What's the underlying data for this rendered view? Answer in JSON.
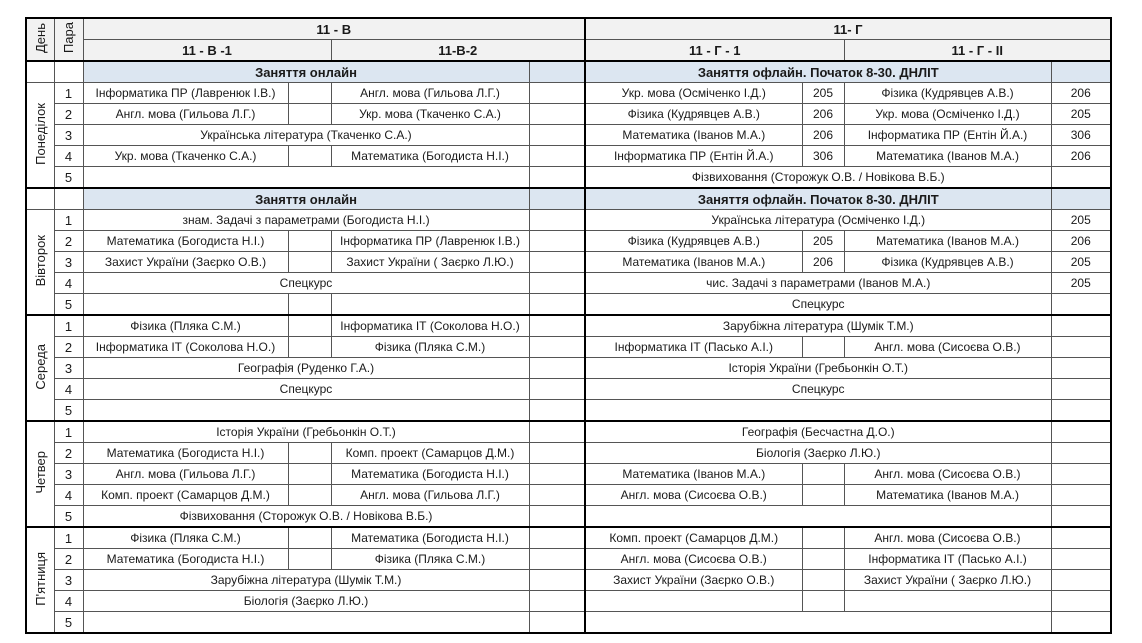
{
  "header": {
    "day_label": "День",
    "para_label": "Пара",
    "class_b": "11 - В",
    "class_g": "11- Г",
    "group_b1": "11 - В -1",
    "group_b2": "11-В-2",
    "group_g1": "11 - Г - 1",
    "group_g2": "11 - Г - II"
  },
  "colors": {
    "header_bg": "#f2f2f2",
    "banner_bg": "#dce6f1"
  },
  "days": [
    {
      "name": "Понеділок",
      "banner": {
        "b": "Заняття онлайн",
        "g": "Заняття офлайн. Початок 8-30. ДНЛІТ"
      },
      "rows": [
        {
          "num": "1",
          "b": [
            "Інформатика ПР (Лавренюк І.В.)",
            "",
            "Англ. мова (Гильова Л.Г.)",
            ""
          ],
          "g": [
            "Укр. мова (Осміченко І.Д.)",
            "205",
            "Фізика (Кудрявцев А.В.)",
            "206"
          ]
        },
        {
          "num": "2",
          "b": [
            "Англ. мова (Гильова Л.Г.)",
            "",
            "Укр. мова (Ткаченко С.А.)",
            ""
          ],
          "g": [
            "Фізика (Кудрявцев А.В.)",
            "206",
            "Укр. мова (Осміченко І.Д.)",
            "205"
          ]
        },
        {
          "num": "3",
          "b": [
            "Українська література (Ткаченко С.А.)",
            ""
          ],
          "g": [
            "Математика (Іванов М.А.)",
            "206",
            "Інформатика ПР (Ентін Й.А.)",
            "306"
          ]
        },
        {
          "num": "4",
          "b": [
            "Укр. мова (Ткаченко С.А.)",
            "",
            "Математика (Богодиста Н.І.)",
            ""
          ],
          "g": [
            "Інформатика ПР (Ентін Й.А.)",
            "306",
            "Математика (Іванов М.А.)",
            "206"
          ]
        },
        {
          "num": "5",
          "b": [
            "",
            ""
          ],
          "g": [
            "Фізвиховання (Сторожук О.В. / Новікова В.Б.)",
            ""
          ]
        }
      ]
    },
    {
      "name": "Вівторок",
      "banner": {
        "b": "Заняття онлайн",
        "g": "Заняття офлайн. Початок 8-30. ДНЛІТ"
      },
      "rows": [
        {
          "num": "1",
          "b": [
            "знам. Задачі з параметрами (Богодиста Н.І.)",
            ""
          ],
          "g": [
            "Українська література (Осміченко І.Д.)",
            "205"
          ]
        },
        {
          "num": "2",
          "b": [
            "Математика (Богодиста Н.І.)",
            "",
            "Інформатика ПР (Лавренюк І.В.)",
            ""
          ],
          "g": [
            "Фізика (Кудрявцев А.В.)",
            "205",
            "Математика (Іванов М.А.)",
            "206"
          ]
        },
        {
          "num": "3",
          "b": [
            "Захист України (Заєрко О.В.)",
            "",
            "Захист України ( Заєрко Л.Ю.)",
            ""
          ],
          "g": [
            "Математика (Іванов М.А.)",
            "206",
            "Фізика (Кудрявцев А.В.)",
            "205"
          ]
        },
        {
          "num": "4",
          "b": [
            "Спецкурс",
            ""
          ],
          "g": [
            "чис. Задачі з параметрами (Іванов М.А.)",
            "205"
          ]
        },
        {
          "num": "5",
          "b": [
            "",
            "",
            "",
            ""
          ],
          "g": [
            "Спецкурс",
            ""
          ]
        }
      ]
    },
    {
      "name": "Середа",
      "banner": null,
      "rows": [
        {
          "num": "1",
          "b": [
            "Фізика (Пляка С.М.)",
            "",
            "Інформатика ІТ (Соколова Н.О.)",
            ""
          ],
          "g": [
            "Зарубіжна література (Шумік Т.М.)",
            ""
          ]
        },
        {
          "num": "2",
          "b": [
            "Інформатика ІТ (Соколова Н.О.)",
            "",
            "Фізика (Пляка С.М.)",
            ""
          ],
          "g": [
            "Інформатика ІТ (Пасько А.І.)",
            "",
            "Англ. мова (Сисоєва О.В.)",
            ""
          ]
        },
        {
          "num": "3",
          "b": [
            "Географія (Руденко Г.А.)",
            ""
          ],
          "g": [
            "Історія України (Гребьонкін О.Т.)",
            ""
          ]
        },
        {
          "num": "4",
          "b": [
            "Спецкурс",
            ""
          ],
          "g": [
            "Спецкурс",
            ""
          ]
        },
        {
          "num": "5",
          "b": [
            "",
            ""
          ],
          "g": [
            "",
            ""
          ]
        }
      ]
    },
    {
      "name": "Четвер",
      "banner": null,
      "rows": [
        {
          "num": "1",
          "b": [
            "Історія України (Гребьонкін О.Т.)",
            ""
          ],
          "g": [
            "Географія (Бесчастна Д.О.)",
            ""
          ]
        },
        {
          "num": "2",
          "b": [
            "Математика (Богодиста Н.І.)",
            "",
            "Комп. проект (Самарцов Д.М.)",
            ""
          ],
          "g": [
            "Біологія (Заєрко Л.Ю.)",
            ""
          ]
        },
        {
          "num": "3",
          "b": [
            "Англ. мова (Гильова Л.Г.)",
            "",
            "Математика (Богодиста Н.І.)",
            ""
          ],
          "g": [
            "Математика (Іванов М.А.)",
            "",
            "Англ. мова (Сисоєва О.В.)",
            ""
          ]
        },
        {
          "num": "4",
          "b": [
            "Комп. проект (Самарцов Д.М.)",
            "",
            "Англ. мова (Гильова Л.Г.)",
            ""
          ],
          "g": [
            "Англ. мова (Сисоєва О.В.)",
            "",
            "Математика (Іванов М.А.)",
            ""
          ]
        },
        {
          "num": "5",
          "b": [
            "Фізвиховання (Сторожук О.В. / Новікова В.Б.)",
            ""
          ],
          "g": [
            "",
            ""
          ]
        }
      ]
    },
    {
      "name": "П'ятниця",
      "banner": null,
      "rows": [
        {
          "num": "1",
          "b": [
            "Фізика (Пляка С.М.)",
            "",
            "Математика (Богодиста Н.І.)",
            ""
          ],
          "g": [
            "Комп. проект (Самарцов Д.М.)",
            "",
            "Англ. мова (Сисоєва О.В.)",
            ""
          ]
        },
        {
          "num": "2",
          "b": [
            "Математика (Богодиста Н.І.)",
            "",
            "Фізика (Пляка С.М.)",
            ""
          ],
          "g": [
            "Англ. мова (Сисоєва О.В.)",
            "",
            "Інформатика ІТ (Пасько А.І.)",
            ""
          ]
        },
        {
          "num": "3",
          "b": [
            "Зарубіжна література (Шумік Т.М.)",
            ""
          ],
          "g": [
            "Захист України (Заєрко О.В.)",
            "",
            "Захист України ( Заєрко Л.Ю.)",
            ""
          ]
        },
        {
          "num": "4",
          "b": [
            "Біологія (Заєрко Л.Ю.)",
            ""
          ],
          "g": [
            "",
            "",
            "",
            ""
          ]
        },
        {
          "num": "5",
          "b": [
            "",
            ""
          ],
          "g": [
            "",
            ""
          ]
        }
      ]
    }
  ]
}
